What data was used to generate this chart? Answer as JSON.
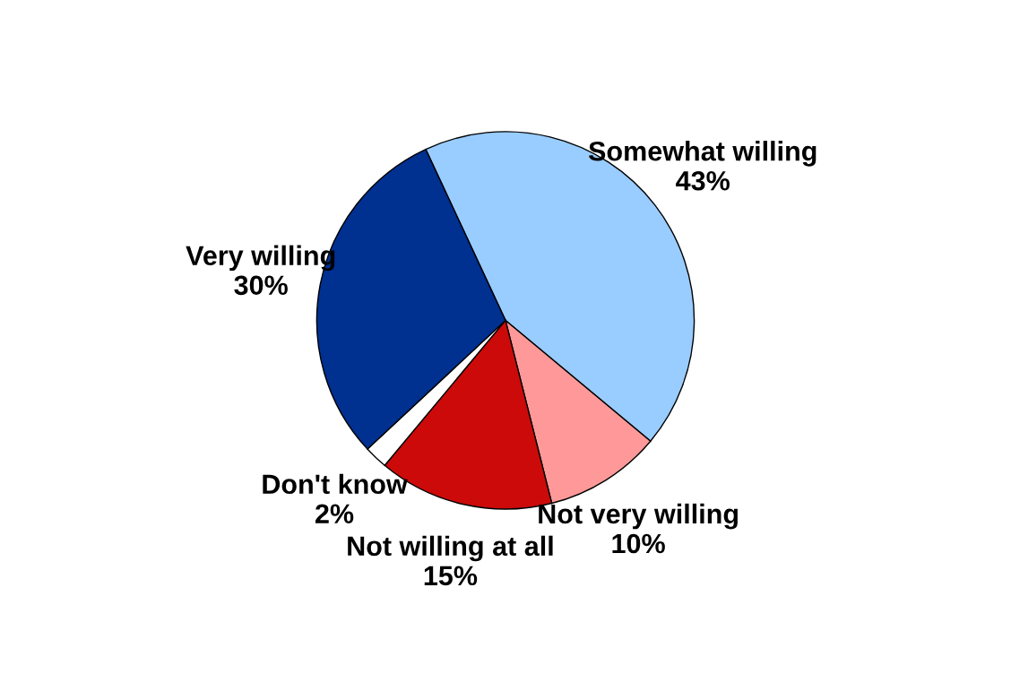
{
  "chart_data": {
    "type": "pie",
    "categories": [
      "Somewhat willing",
      "Not very willing",
      "Not willing at all",
      "Don't know",
      "Very willing"
    ],
    "values": [
      43,
      10,
      15,
      2,
      30
    ],
    "colors": [
      "#99ccff",
      "#ff9999",
      "#cc0a0a",
      "#ffffff",
      "#003090"
    ],
    "value_labels": [
      "43%",
      "10%",
      "15%",
      "2%",
      "30%"
    ],
    "legend": false
  }
}
